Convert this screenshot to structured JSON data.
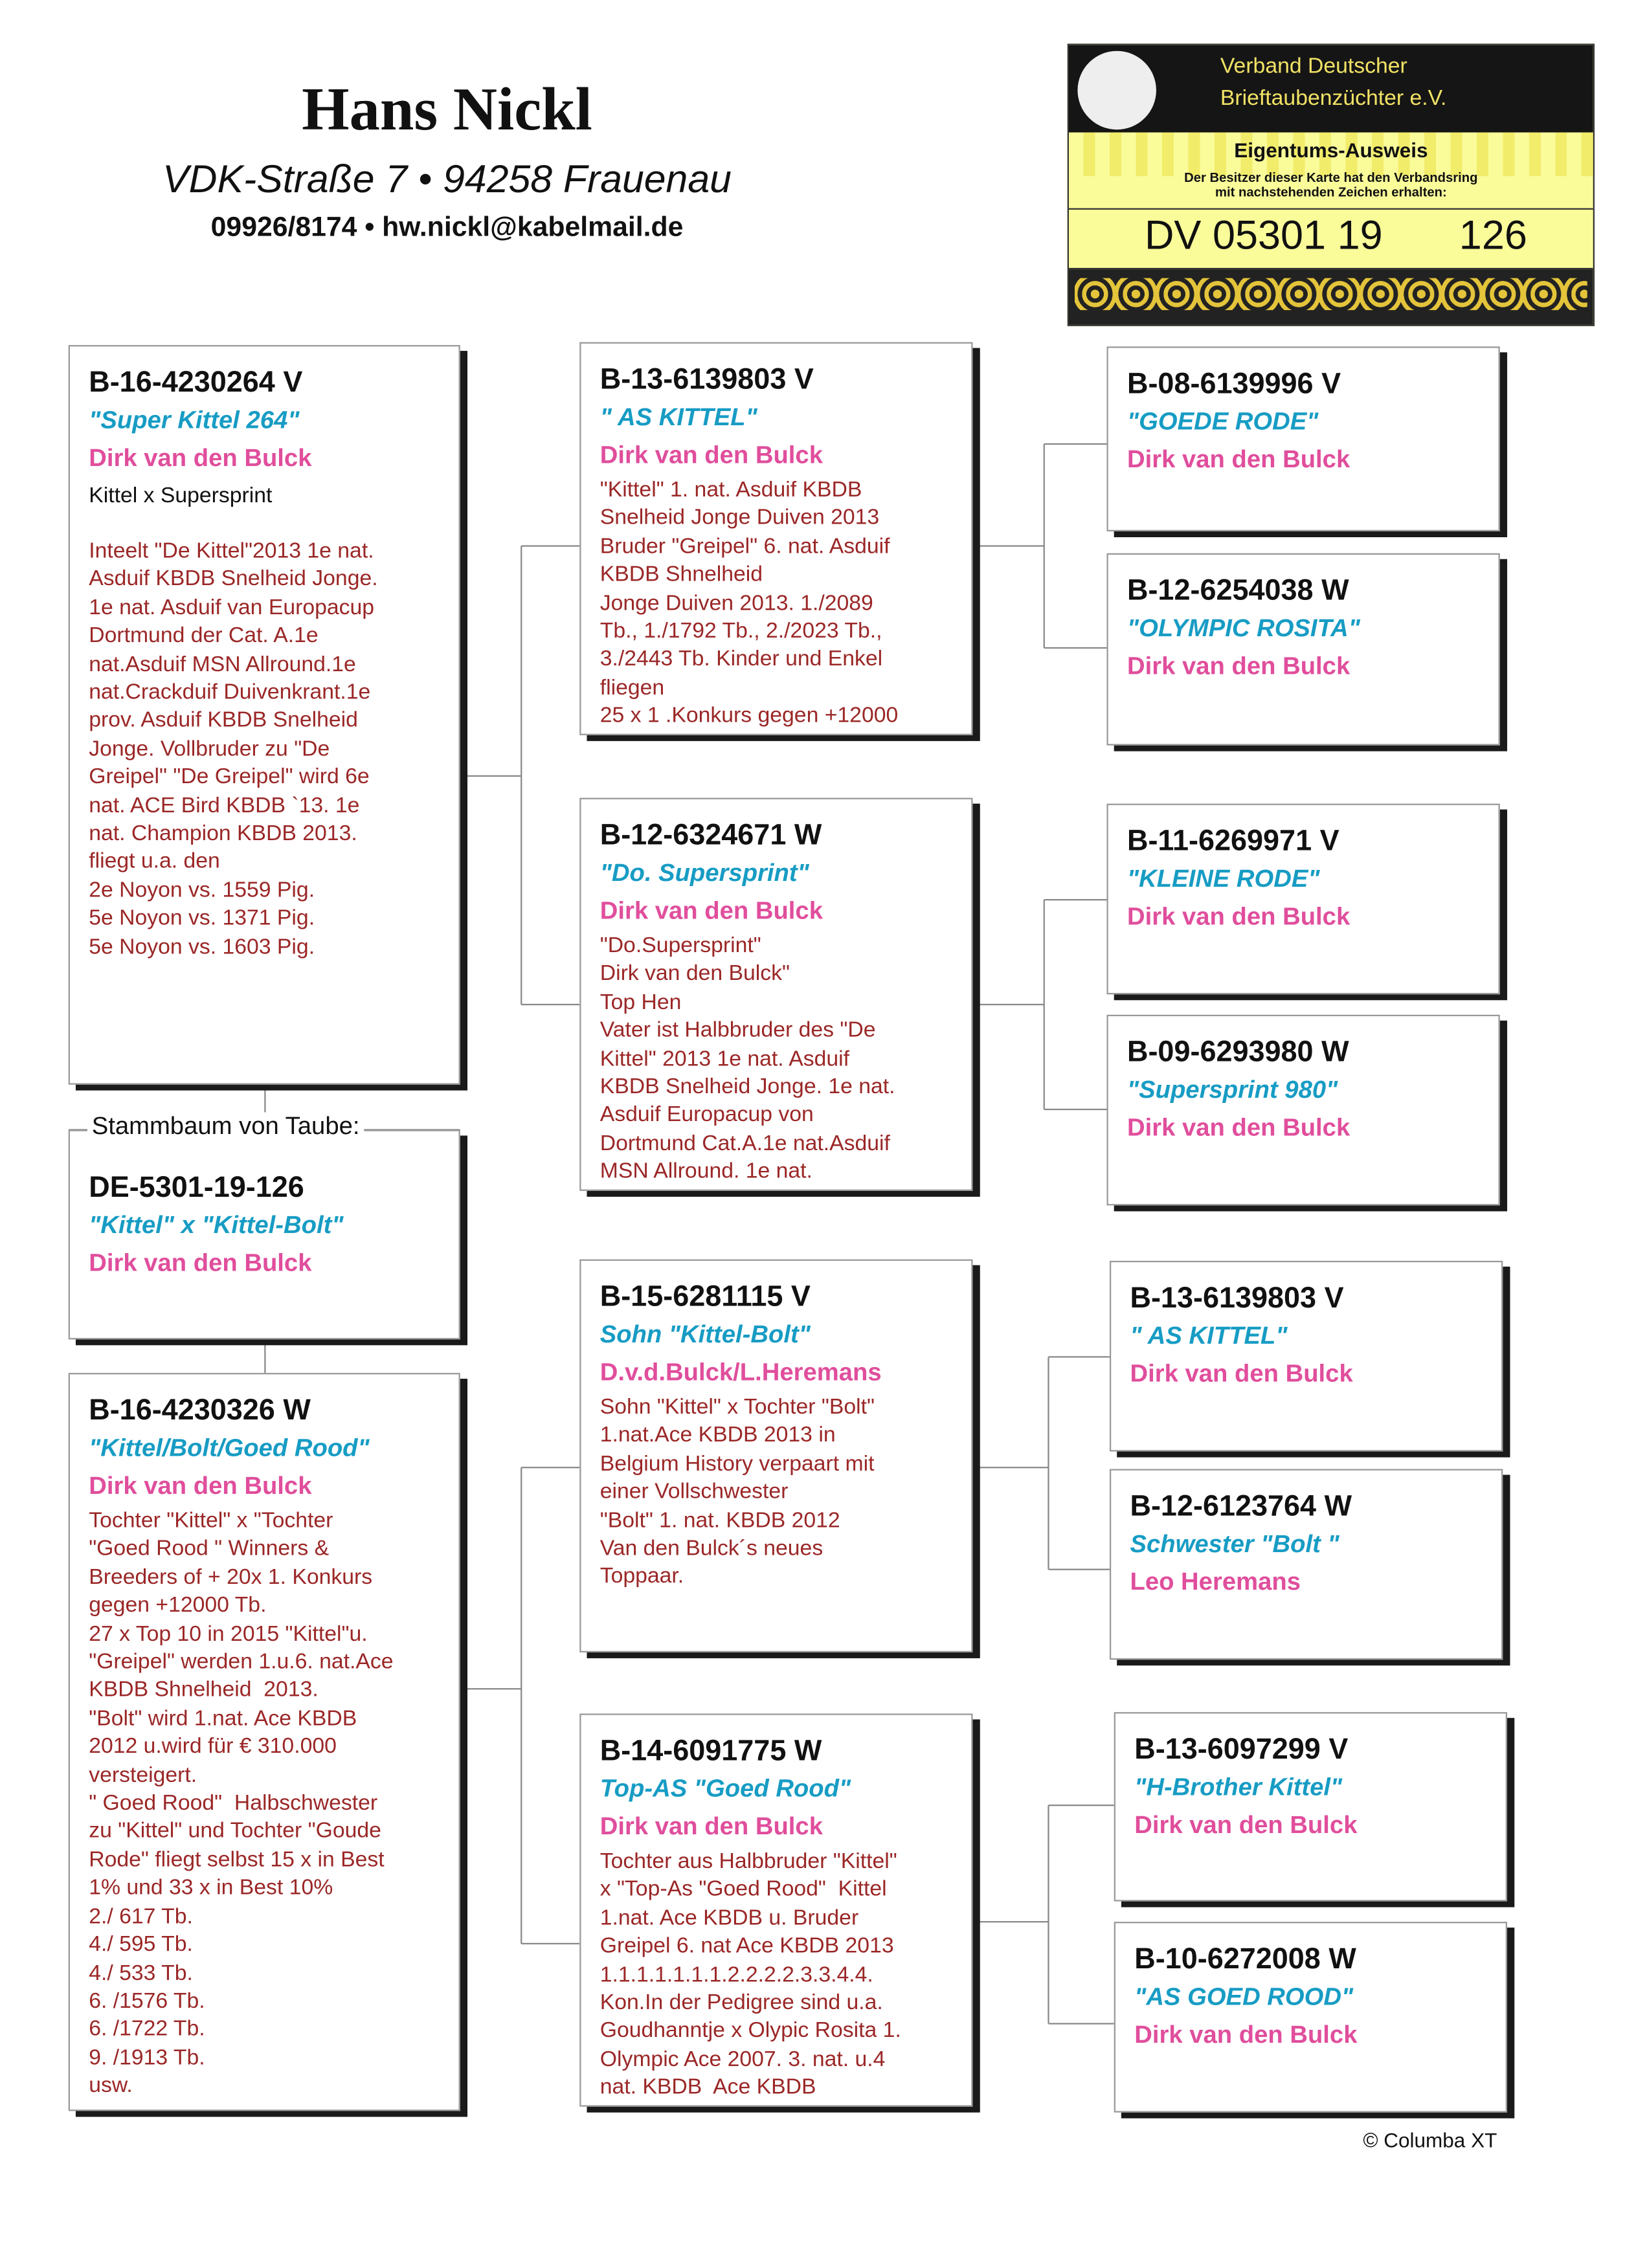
{
  "header": {
    "name": "Hans Nickl",
    "address": "VDK-Straße 7 • 94258 Frauenau",
    "contact": "09926/8174 • hw.nickl@kabelmail.de"
  },
  "badge": {
    "org": [
      "Verband Deutscher",
      "Brieftaubenzüchter e.V."
    ],
    "title": "Eigentums-Ausweis",
    "text": [
      "Der Besitzer dieser Karte hat den Verbandsring",
      "mit nachstehenden Zeichen erhalten:"
    ],
    "ring": "DV 05301 19",
    "number": "126"
  },
  "subject": {
    "label": "Stammbaum von Taube:",
    "ring": "DE-5301-19-126",
    "name": "\"Kittel\" x \"Kittel-Bolt\"",
    "breeder": "Dirk van den Bulck"
  },
  "birds": [
    {
      "ring": "B-16-4230264 V",
      "name": "\"Super Kittel 264\"",
      "breeder": "Dirk van den Bulck",
      "pedigree": "Kittel x Supersprint",
      "notes": [
        "Inteelt \"De Kittel\"2013 1e nat.",
        "Asduif KBDB Snelheid Jonge.",
        "1e nat. Asduif van Europacup",
        "Dortmund der Cat. A.1e",
        "nat.Asduif MSN Allround.1e",
        "nat.Crackduif Duivenkrant.1e",
        "prov. Asduif KBDB Snelheid",
        "Jonge. Vollbruder zu \"De",
        "Greipel\" \"De Greipel\" wird 6e",
        "nat. ACE Bird KBDB `13. 1e",
        "nat. Champion KBDB 2013.",
        "fliegt u.a. den",
        "2e Noyon vs. 1559 Pig.",
        "5e Noyon vs. 1371 Pig.",
        "5e Noyon vs. 1603 Pig."
      ]
    },
    {
      "ring": "B-16-4230326 W",
      "name": "\"Kittel/Bolt/Goed Rood\"",
      "breeder": "Dirk van den Bulck",
      "notes": [
        "Tochter \"Kittel\" x \"Tochter",
        "\"Goed Rood \" Winners &",
        "Breeders of + 20x 1. Konkurs",
        "gegen +12000 Tb.",
        "27 x Top 10 in 2015 \"Kittel\"u.",
        "\"Greipel\" werden 1.u.6. nat.Ace",
        "KBDB Shnelheid  2013.",
        "\"Bolt\" wird 1.nat. Ace KBDB",
        "2012 u.wird für € 310.000",
        "versteigert.",
        "\" Goed Rood\"  Halbschwester",
        "zu \"Kittel\" und Tochter \"Goude",
        "Rode\" fliegt selbst 15 x in Best",
        "1% und 33 x in Best 10%",
        "2./ 617 Tb.",
        "4./ 595 Tb.",
        "4./ 533 Tb.",
        "6. /1576 Tb.",
        "6. /1722 Tb.",
        "9. /1913 Tb.",
        "usw."
      ]
    },
    {
      "ring": "B-13-6139803 V",
      "name": "\" AS KITTEL\"",
      "breeder": "Dirk van den Bulck",
      "notes": [
        "\"Kittel\" 1. nat. Asduif KBDB",
        "Snelheid Jonge Duiven 2013",
        "Bruder \"Greipel\" 6. nat. Asduif",
        "KBDB Shnelheid",
        "Jonge Duiven 2013. 1./2089",
        "Tb., 1./1792 Tb., 2./2023 Tb.,",
        "3./2443 Tb. Kinder und Enkel",
        "fliegen",
        "25 x 1 .Konkurs gegen +12000"
      ]
    },
    {
      "ring": "B-12-6324671 W",
      "name": "\"Do. Supersprint\"",
      "breeder": "Dirk van den Bulck",
      "notes": [
        "\"Do.Supersprint\"",
        "Dirk van den Bulck\"",
        "Top Hen",
        "Vater ist Halbbruder des \"De",
        "Kittel\" 2013 1e nat. Asduif",
        "KBDB Snelheid Jonge. 1e nat.",
        "Asduif Europacup von",
        "Dortmund Cat.A.1e nat.Asduif",
        "MSN Allround. 1e nat."
      ]
    },
    {
      "ring": "B-15-6281115 V",
      "name": "Sohn \"Kittel-Bolt\"",
      "breeder": "D.v.d.Bulck/L.Heremans",
      "notes": [
        "Sohn \"Kittel\" x Tochter \"Bolt\"",
        "1.nat.Ace KBDB 2013 in",
        "Belgium History verpaart mit",
        "einer Vollschwester",
        "\"Bolt\" 1. nat. KBDB 2012",
        "Van den Bulck´s neues",
        "Toppaar."
      ]
    },
    {
      "ring": "B-14-6091775 W",
      "name": "Top-AS \"Goed Rood\"",
      "breeder": "Dirk van den Bulck",
      "notes": [
        "Tochter aus Halbbruder \"Kittel\"",
        "x \"Top-As \"Goed Rood\"  Kittel",
        "1.nat. Ace KBDB u. Bruder",
        "Greipel 6. nat Ace KBDB 2013",
        "1.1.1.1.1.1.1.2.2.2.2.3.3.4.4.",
        "Kon.In der Pedigree sind u.a.",
        "Goudhanntje x Olypic Rosita 1.",
        "Olympic Ace 2007. 3. nat. u.4",
        "nat. KBDB  Ace KBDB"
      ]
    },
    {
      "ring": "B-08-6139996 V",
      "name": "\"GOEDE RODE\"",
      "breeder": "Dirk van den Bulck"
    },
    {
      "ring": "B-12-6254038 W",
      "name": "\"OLYMPIC ROSITA\"",
      "breeder": "Dirk van den Bulck"
    },
    {
      "ring": "B-11-6269971 V",
      "name": "\"KLEINE RODE\"",
      "breeder": "Dirk van den Bulck"
    },
    {
      "ring": "B-09-6293980 W",
      "name": "\"Supersprint 980\"",
      "breeder": "Dirk van den Bulck"
    },
    {
      "ring": "B-13-6139803 V",
      "name": "\" AS KITTEL\"",
      "breeder": "Dirk van den Bulck"
    },
    {
      "ring": "B-12-6123764 W",
      "name": "Schwester \"Bolt \"",
      "breeder": "Leo Heremans"
    },
    {
      "ring": "B-13-6097299 V",
      "name": "\"H-Brother Kittel\"",
      "breeder": "Dirk van den Bulck"
    },
    {
      "ring": "B-10-6272008 W",
      "name": "\"AS GOED ROOD\"",
      "breeder": "Dirk van den Bulck"
    }
  ],
  "footer": "© Columba XT"
}
